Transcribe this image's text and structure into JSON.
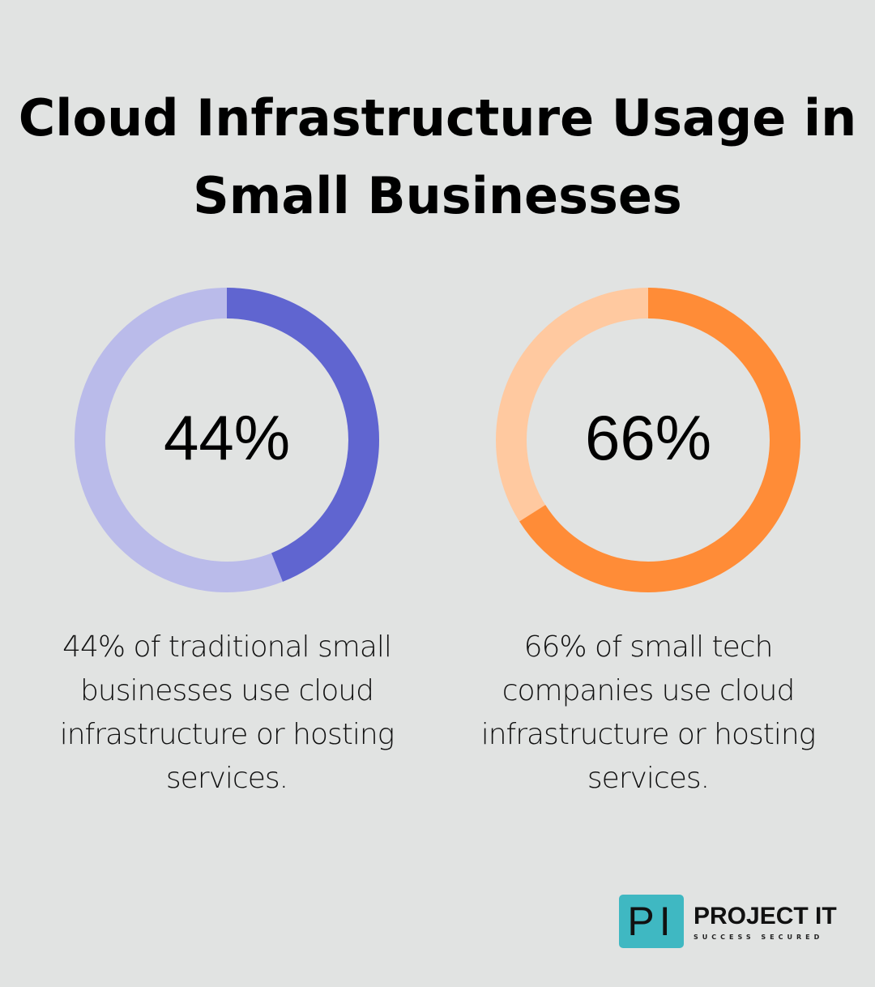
{
  "title": "Cloud Infrastructure Usage in Small Businesses",
  "chart_data": [
    {
      "type": "pie",
      "variant": "donut",
      "value": 44,
      "max": 100,
      "center_label": "44%",
      "description": "44% of traditional small businesses use cloud infrastructure or hosting services.",
      "colors": {
        "filled": "#6065d0",
        "remaining": "#babbea"
      }
    },
    {
      "type": "pie",
      "variant": "donut",
      "value": 66,
      "max": 100,
      "center_label": "66%",
      "description": "66% of small tech companies use cloud infrastructure or hosting services.",
      "colors": {
        "filled": "#ff8c37",
        "remaining": "#ffc9a0"
      }
    }
  ],
  "logo": {
    "mark": "PI",
    "name": "PROJECT IT",
    "tagline": "SUCCESS SECURED",
    "color": "#3fb8c2"
  }
}
